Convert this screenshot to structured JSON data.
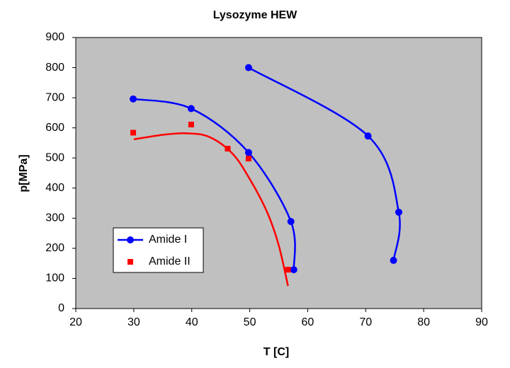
{
  "chart_data": {
    "type": "line",
    "title": "Lysozyme HEW",
    "x_label": "T [C]",
    "y_label": "p[MPa]",
    "xlim": [
      20,
      90
    ],
    "xticks": [
      20,
      30,
      40,
      50,
      60,
      70,
      80,
      90
    ],
    "ylim": [
      0,
      900
    ],
    "yticks": [
      0,
      100,
      200,
      300,
      400,
      500,
      600,
      700,
      800,
      900
    ],
    "grid": false,
    "plot_background": "#c0c0c0",
    "series": [
      {
        "name": "Amide I",
        "color": "#0000ff",
        "marker": "circle",
        "line": true,
        "x": [
          29.9,
          39.9,
          49.8,
          57.1,
          57.6,
          null,
          49.8,
          70.4,
          75.7,
          74.8
        ],
        "values": [
          696,
          664,
          518,
          289,
          129,
          null,
          800,
          573,
          320,
          160
        ]
      },
      {
        "name": "Amide II",
        "color": "#ff0000",
        "marker": "square",
        "line": false,
        "x": [
          29.9,
          39.9,
          46.2,
          49.8,
          56.6
        ],
        "values": [
          584,
          611,
          531,
          498,
          129
        ]
      },
      {
        "color": "#ff0000",
        "marker": "none",
        "line": true,
        "x": [
          30,
          35,
          39,
          43,
          47,
          50,
          53,
          55,
          56.6
        ],
        "values": [
          562,
          577,
          582,
          570,
          515,
          430,
          320,
          210,
          75
        ]
      }
    ]
  }
}
